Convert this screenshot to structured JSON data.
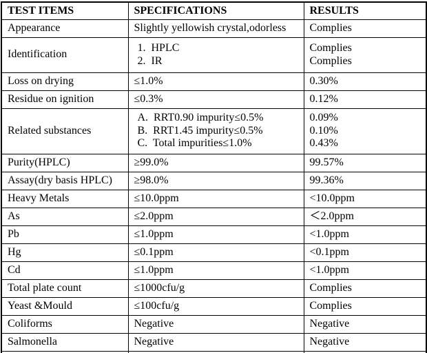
{
  "table": {
    "columns": [
      "TEST ITEMS",
      "SPECIFICATIONS",
      "RESULTS"
    ],
    "rows": [
      {
        "item": "Appearance",
        "specs": [
          "Slightly yellowish crystal,odorless"
        ],
        "results": [
          "Complies"
        ]
      },
      {
        "item": "Identification",
        "specs": [
          "1.  HPLC",
          "2.  IR"
        ],
        "results": [
          "Complies",
          "Complies"
        ]
      },
      {
        "item": "Loss on drying",
        "specs": [
          "≤1.0%"
        ],
        "results": [
          "0.30%"
        ]
      },
      {
        "item": "Residue on ignition",
        "specs": [
          "≤0.3%"
        ],
        "results": [
          "0.12%"
        ]
      },
      {
        "item": "Related substances",
        "specs": [
          "A.  RRT0.90 impurity≤0.5%",
          "B.  RRT1.45 impurity≤0.5%",
          "C.  Total impurities≤1.0%"
        ],
        "results": [
          "0.09%",
          "0.10%",
          "0.43%"
        ]
      },
      {
        "item": "Purity(HPLC)",
        "specs": [
          "≥99.0%"
        ],
        "results": [
          "99.57%"
        ]
      },
      {
        "item": "Assay(dry basis HPLC)",
        "specs": [
          "≥98.0%"
        ],
        "results": [
          "99.36%"
        ]
      },
      {
        "item": "Heavy Metals",
        "specs": [
          "≤10.0ppm"
        ],
        "results": [
          "<10.0ppm"
        ]
      },
      {
        "item": "As",
        "specs": [
          "≤2.0ppm"
        ],
        "results": [
          "＜2.0ppm"
        ]
      },
      {
        "item": "Pb",
        "specs": [
          "≤1.0ppm"
        ],
        "results": [
          "<1.0ppm"
        ]
      },
      {
        "item": "Hg",
        "specs": [
          "≤0.1ppm"
        ],
        "results": [
          "<0.1ppm"
        ]
      },
      {
        "item": "Cd",
        "specs": [
          "≤1.0ppm"
        ],
        "results": [
          "<1.0ppm"
        ]
      },
      {
        "item": "Total plate count",
        "specs": [
          "≤1000cfu/g"
        ],
        "results": [
          "Complies"
        ]
      },
      {
        "item": "Yeast &Mould",
        "specs": [
          "≤100cfu/g"
        ],
        "results": [
          "Complies"
        ]
      },
      {
        "item": "Coliforms",
        "specs": [
          "Negative"
        ],
        "results": [
          "Negative"
        ]
      },
      {
        "item": "Salmonella",
        "specs": [
          "Negative"
        ],
        "results": [
          "Negative"
        ]
      }
    ]
  }
}
